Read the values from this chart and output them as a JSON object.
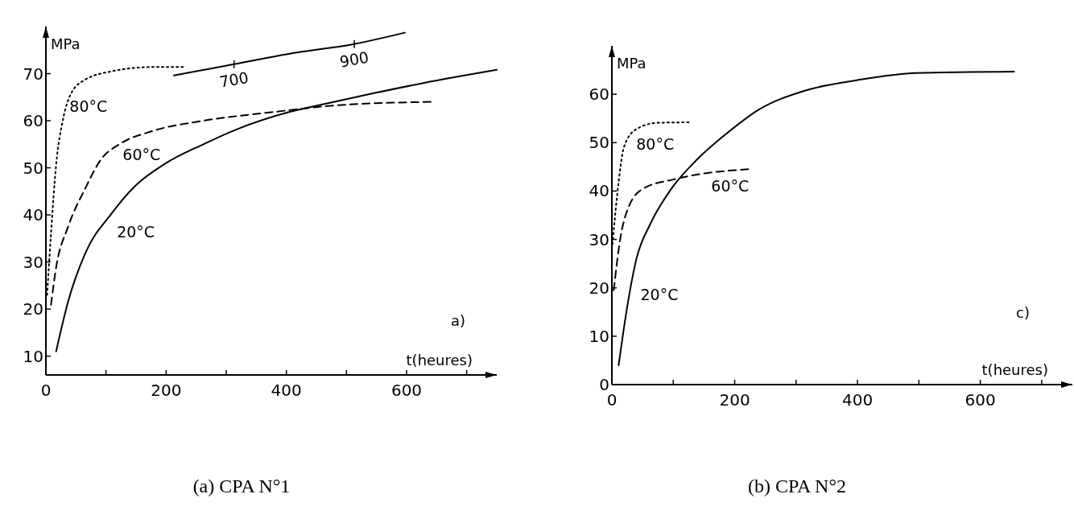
{
  "chart_data": [
    {
      "type": "line",
      "title": "(a) CPA N°1",
      "xlabel": "t(heures)",
      "ylabel": "MPa",
      "xlim": [
        0,
        750
      ],
      "ylim": [
        6,
        80
      ],
      "xticks": [
        0,
        {
          "value": 100,
          "label": null
        },
        200,
        {
          "value": 300,
          "label": null
        },
        400,
        {
          "value": 500,
          "label": null
        },
        600,
        {
          "value": 700,
          "label": null
        }
      ],
      "yticks": [
        10,
        20,
        30,
        40,
        50,
        60,
        70
      ],
      "grid": false,
      "marker": "none",
      "annotations": [
        "a)",
        {
          "text": "700",
          "x": 313,
          "y": 72
        },
        {
          "text": "900",
          "x": 513,
          "y": 76.3
        }
      ],
      "series": [
        {
          "name": "80°C",
          "color": "#000000",
          "line_style": "dotted",
          "x": [
            2,
            8.5,
            17,
            28,
            42,
            65,
            110,
            177,
            228
          ],
          "values": [
            23,
            36,
            50.6,
            60,
            65.8,
            68.7,
            70.5,
            71.4,
            71.4
          ]
        },
        {
          "name": "60°C",
          "color": "#000000",
          "line_style": "dashed",
          "x": [
            8.5,
            17,
            37,
            65,
            93,
            121,
            177,
            262,
            375,
            487,
            640
          ],
          "values": [
            20.9,
            28.8,
            37.5,
            45.5,
            52,
            54.9,
            57.8,
            60,
            61.8,
            63.3,
            64
          ]
        },
        {
          "name": "20°C",
          "color": "#000000",
          "line_style": "solid",
          "x": [
            17,
            37,
            65,
            110,
            149,
            200,
            262,
            318,
            403,
            465,
            544,
            628,
            750
          ],
          "values": [
            11,
            21.6,
            31.7,
            40.4,
            46.2,
            51,
            55,
            58.2,
            61.8,
            63.6,
            65.8,
            68,
            70.8
          ]
        },
        {
          "color": "#000000",
          "line_style": "solid",
          "x": [
            213,
            313,
            413,
            513,
            597
          ],
          "values": [
            69.6,
            72,
            74.4,
            76.3,
            78.7
          ]
        }
      ]
    },
    {
      "type": "line",
      "title": "(b) CPA N°2",
      "xlabel": "t(heures)",
      "ylabel": "MPa",
      "xlim": [
        0,
        750
      ],
      "ylim": [
        0,
        70
      ],
      "xticks": [
        0,
        {
          "value": 100,
          "label": null
        },
        200,
        {
          "value": 300,
          "label": null
        },
        400,
        {
          "value": 500,
          "label": null
        },
        600,
        {
          "value": 700,
          "label": null
        }
      ],
      "yticks": [
        0,
        10,
        20,
        30,
        40,
        50,
        60
      ],
      "grid": false,
      "marker": "none",
      "annotations": [
        "c)"
      ],
      "series": [
        {
          "name": "80°C",
          "color": "#000000",
          "line_style": "dotted",
          "x": [
            1,
            8.5,
            20,
            40,
            74,
            125
          ],
          "values": [
            29,
            39,
            49.2,
            52.8,
            54.1,
            54.2
          ]
        },
        {
          "name": "60°C",
          "color": "#000000",
          "line_style": "dashed",
          "x": [
            3,
            14,
            28,
            51,
            97,
            154,
            222
          ],
          "values": [
            19.5,
            30.4,
            36.9,
            40.5,
            42.3,
            43.7,
            44.5
          ]
        },
        {
          "name": "20°C",
          "color": "#000000",
          "line_style": "solid",
          "x": [
            11,
            23,
            40,
            63,
            97,
            137,
            188,
            239,
            313,
            399,
            496,
            655
          ],
          "values": [
            4,
            14.5,
            26,
            33.3,
            40.5,
            46.3,
            52,
            56.8,
            60.7,
            62.9,
            64.4,
            64.7
          ]
        }
      ]
    }
  ]
}
